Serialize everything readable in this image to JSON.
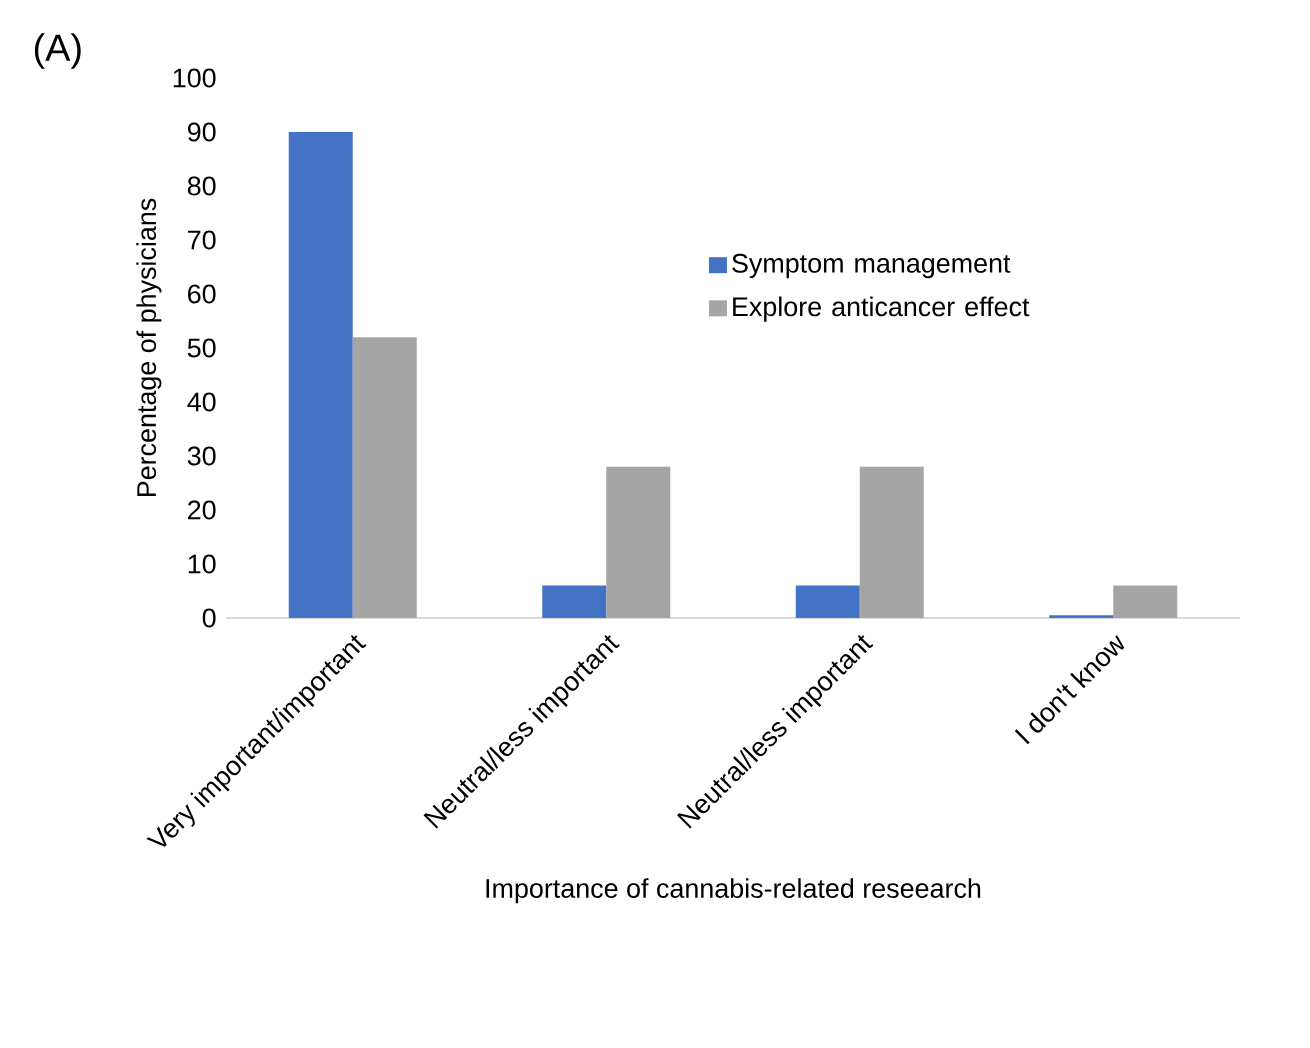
{
  "chart_data": {
    "type": "bar",
    "annotations": [
      "(A)"
    ],
    "xlabel": "Importance of cannabis-related reseearch",
    "ylabel": "Percentage of physicians",
    "categories": [
      "Very important/important",
      "Neutral/less important",
      "Neutral/less important",
      "I don't know"
    ],
    "series": [
      {
        "name": "Symptom management",
        "color": "#4472c4",
        "values": [
          90,
          6,
          6,
          0.5
        ]
      },
      {
        "name": "Explore anticancer effect",
        "color": "#a5a5a5",
        "values": [
          52,
          28,
          28,
          6
        ]
      }
    ],
    "ylim": [
      0,
      100
    ],
    "yticks": [
      0,
      10,
      20,
      30,
      40,
      50,
      60,
      70,
      80,
      90,
      100
    ],
    "legend": "right",
    "grid": false
  }
}
